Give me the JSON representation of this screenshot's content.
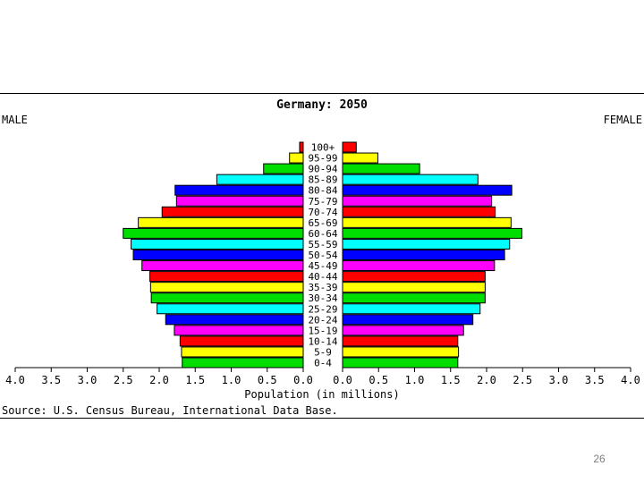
{
  "chart_data": {
    "type": "bar",
    "title": "Germany: 2050",
    "left_side_label": "MALE",
    "right_side_label": "FEMALE",
    "xlabel": "Population (in millions)",
    "source": "Source: U.S. Census Bureau, International Data Base.",
    "xlim": [
      0,
      4.0
    ],
    "x_tick_labels_left": [
      "4.0",
      "3.5",
      "3.0",
      "2.5",
      "2.0",
      "1.5",
      "1.0",
      "0.5",
      "0.0"
    ],
    "x_tick_labels_right": [
      "0.0",
      "0.5",
      "1.0",
      "1.5",
      "2.0",
      "2.5",
      "3.0",
      "3.5",
      "4.0"
    ],
    "categories": [
      "100+",
      "95-99",
      "90-94",
      "85-89",
      "80-84",
      "75-79",
      "70-74",
      "65-69",
      "60-64",
      "55-59",
      "50-54",
      "45-49",
      "40-44",
      "35-39",
      "30-34",
      "25-29",
      "20-24",
      "15-19",
      "10-14",
      "5-9",
      "0-4"
    ],
    "series": [
      {
        "name": "MALE",
        "values": [
          0.05,
          0.19,
          0.55,
          1.2,
          1.78,
          1.76,
          1.96,
          2.29,
          2.5,
          2.39,
          2.36,
          2.24,
          2.13,
          2.12,
          2.11,
          2.03,
          1.91,
          1.79,
          1.71,
          1.69,
          1.68
        ]
      },
      {
        "name": "FEMALE",
        "values": [
          0.19,
          0.49,
          1.07,
          1.88,
          2.35,
          2.07,
          2.12,
          2.34,
          2.49,
          2.32,
          2.25,
          2.11,
          1.98,
          1.98,
          1.98,
          1.91,
          1.81,
          1.68,
          1.6,
          1.61,
          1.6
        ]
      }
    ],
    "bar_colors": [
      "#ff0000",
      "#ffff00",
      "#00dd00",
      "#00ffff",
      "#0000ff",
      "#ff00ff",
      "#ff0000",
      "#ffff00",
      "#00dd00",
      "#00ffff",
      "#0000ff",
      "#ff00ff",
      "#ff0000",
      "#ffff00",
      "#00dd00",
      "#00ffff",
      "#0000ff",
      "#ff00ff",
      "#ff0000",
      "#ffff00",
      "#00dd00"
    ],
    "grid": false,
    "legend": "none"
  },
  "page_number": "26"
}
